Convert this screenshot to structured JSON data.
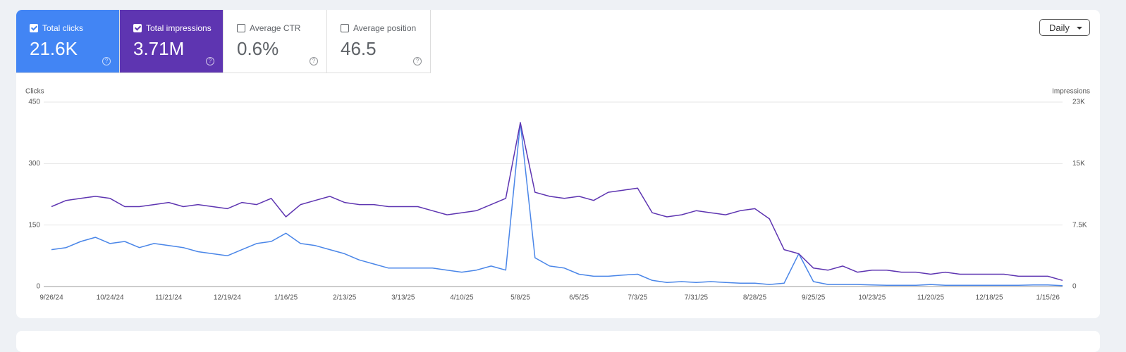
{
  "metrics": [
    {
      "label": "Total clicks",
      "value": "21.6K",
      "checked": true,
      "color": "#4285f4"
    },
    {
      "label": "Total impressions",
      "value": "3.71M",
      "checked": true,
      "color": "#5e35b1"
    },
    {
      "label": "Average CTR",
      "value": "0.6%",
      "checked": false,
      "color": "#ffffff"
    },
    {
      "label": "Average position",
      "value": "46.5",
      "checked": false,
      "color": "#ffffff"
    }
  ],
  "period_button": "Daily",
  "chart_data": {
    "type": "line",
    "y_label": "Clicks",
    "y2_label": "Impressions",
    "x": [
      "9/26/24",
      "10/3/24",
      "10/10/24",
      "10/17/24",
      "10/24/24",
      "10/31/24",
      "11/7/24",
      "11/14/24",
      "11/21/24",
      "11/28/24",
      "12/5/24",
      "12/12/24",
      "12/19/24",
      "12/26/24",
      "1/2/25",
      "1/9/25",
      "1/16/25",
      "1/23/25",
      "1/30/25",
      "2/6/25",
      "2/13/25",
      "2/20/25",
      "2/27/25",
      "3/6/25",
      "3/13/25",
      "3/20/25",
      "3/27/25",
      "4/3/25",
      "4/10/25",
      "4/17/25",
      "4/24/25",
      "5/1/25",
      "5/8/25",
      "5/15/25",
      "5/22/25",
      "5/29/25",
      "6/5/25",
      "6/12/25",
      "6/19/25",
      "6/26/25",
      "7/3/25",
      "7/10/25",
      "7/17/25",
      "7/24/25",
      "7/31/25",
      "8/7/25",
      "8/14/25",
      "8/21/25",
      "8/28/25",
      "9/4/25",
      "9/11/25",
      "9/18/25",
      "9/25/25",
      "10/2/25",
      "10/9/25",
      "10/16/25",
      "10/23/25",
      "10/30/25",
      "11/6/25",
      "11/13/25",
      "11/20/25",
      "11/27/25",
      "12/4/25",
      "12/11/25",
      "12/18/25",
      "12/25/25",
      "1/1/26",
      "1/8/26",
      "1/15/26",
      "1/22/26"
    ],
    "xticks": [
      "9/26/24",
      "10/24/24",
      "11/21/24",
      "12/19/24",
      "1/16/25",
      "2/13/25",
      "3/13/25",
      "4/10/25",
      "5/8/25",
      "6/5/25",
      "7/3/25",
      "7/31/25",
      "8/28/25",
      "9/25/25",
      "10/23/25",
      "11/20/25",
      "12/18/25",
      "1/15/26"
    ],
    "series": [
      {
        "name": "Clicks",
        "color": "#4a86e8",
        "values": [
          90,
          95,
          110,
          120,
          105,
          110,
          95,
          105,
          100,
          95,
          85,
          80,
          75,
          90,
          105,
          110,
          130,
          105,
          100,
          90,
          80,
          65,
          55,
          45,
          45,
          45,
          45,
          40,
          35,
          40,
          50,
          40,
          400,
          70,
          50,
          45,
          30,
          25,
          25,
          28,
          30,
          15,
          10,
          12,
          10,
          12,
          10,
          8,
          8,
          5,
          8,
          80,
          12,
          5,
          5,
          5,
          4,
          3,
          3,
          3,
          5,
          3,
          3,
          3,
          3,
          3,
          3,
          4,
          4,
          2
        ]
      },
      {
        "name": "Impressions",
        "color": "#5e35b1",
        "axis": "y2",
        "values": [
          9750,
          10500,
          10750,
          11000,
          10750,
          9750,
          9750,
          10000,
          10250,
          9750,
          10000,
          9750,
          9500,
          10250,
          10000,
          10750,
          8500,
          10000,
          10500,
          11000,
          10250,
          10000,
          10000,
          9750,
          9750,
          9750,
          9250,
          8750,
          9000,
          9250,
          10000,
          10750,
          20000,
          11500,
          11000,
          10750,
          11000,
          10500,
          11500,
          11750,
          12000,
          9000,
          8500,
          8750,
          9250,
          9000,
          8750,
          9250,
          9500,
          8250,
          4500,
          4000,
          2250,
          2000,
          2500,
          1750,
          2000,
          2000,
          1750,
          1750,
          1500,
          1750,
          1500,
          1500,
          1500,
          1500,
          1250,
          1250,
          1250,
          750
        ]
      }
    ],
    "ylim": [
      0,
      450
    ],
    "yticks": [
      0,
      150,
      300,
      450
    ],
    "y2lim": [
      0,
      22500
    ],
    "y2ticks": [
      0,
      {
        "value": 7500,
        "label": "7.5K"
      },
      {
        "value": 15000,
        "label": "15K"
      },
      {
        "value": 22500,
        "label": "23K"
      }
    ],
    "grid": true
  }
}
